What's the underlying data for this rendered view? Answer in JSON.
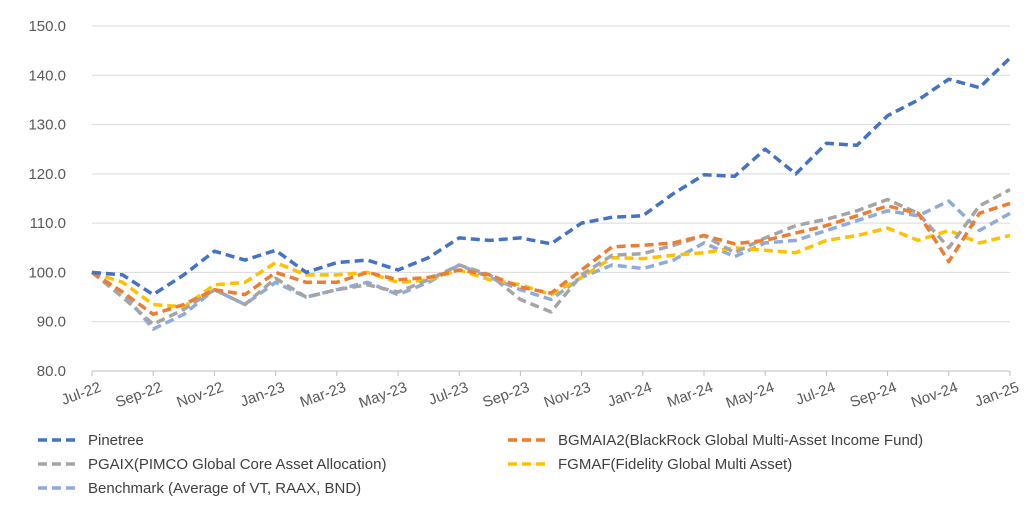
{
  "chart_data": {
    "type": "line",
    "title": "",
    "xlabel": "",
    "ylabel": "",
    "ylim": [
      80,
      150
    ],
    "yticks": [
      "80.0",
      "90.0",
      "100.0",
      "110.0",
      "120.0",
      "130.0",
      "140.0",
      "150.0"
    ],
    "xtick_labels": [
      "Jul-22",
      "Sep-22",
      "Nov-22",
      "Jan-23",
      "Mar-23",
      "May-23",
      "Jul-23",
      "Sep-23",
      "Nov-23",
      "Jan-24",
      "Mar-24",
      "May-24",
      "Jul-24",
      "Sep-24",
      "Nov-24",
      "Jan-25"
    ],
    "x": [
      "Jul-22",
      "Aug-22",
      "Sep-22",
      "Oct-22",
      "Nov-22",
      "Dec-22",
      "Jan-23",
      "Feb-23",
      "Mar-23",
      "Apr-23",
      "May-23",
      "Jun-23",
      "Jul-23",
      "Aug-23",
      "Sep-23",
      "Oct-23",
      "Nov-23",
      "Dec-23",
      "Jan-24",
      "Feb-24",
      "Mar-24",
      "Apr-24",
      "May-24",
      "Jun-24",
      "Jul-24",
      "Aug-24",
      "Sep-24",
      "Oct-24",
      "Nov-24",
      "Dec-24",
      "Jan-25"
    ],
    "grid": "horizontal",
    "legend_position": "bottom",
    "series": [
      {
        "name": "Pinetree",
        "color": "#4472C4",
        "values": [
          100,
          99.5,
          95.5,
          99.5,
          104.3,
          102.5,
          104.5,
          100,
          102,
          102.5,
          100.5,
          103,
          107,
          106.5,
          107,
          105.8,
          110,
          111.2,
          111.5,
          116,
          119.8,
          119.5,
          125,
          120,
          126.2,
          125.8,
          131.8,
          135,
          139.2,
          137.5,
          143.5
        ]
      },
      {
        "name": "BGMAIA2(BlackRock Global Multi-Asset Income Fund)",
        "color": "#ED7D31",
        "values": [
          100,
          96,
          91.5,
          93.5,
          96.5,
          95.5,
          100,
          98,
          98,
          100,
          98.5,
          99,
          100.5,
          99.5,
          97,
          95.8,
          100.5,
          105.2,
          105.5,
          106,
          107.5,
          105.8,
          106.5,
          108,
          109.5,
          111.5,
          113.5,
          112,
          102.2,
          112,
          114
        ]
      },
      {
        "name": "PGAIX(PIMCO Global Core Asset Allocation)",
        "color": "#A5A5A5",
        "values": [
          100,
          95,
          89.5,
          92.5,
          96.5,
          93.5,
          98.8,
          95,
          96.5,
          97.5,
          96,
          98.5,
          101.5,
          99.5,
          94.5,
          92,
          99.5,
          103.5,
          103.8,
          105.5,
          107.5,
          104,
          107,
          109.5,
          110.8,
          112.5,
          114.8,
          112,
          105,
          113.5,
          116.8
        ]
      },
      {
        "name": "FGMAF(Fidelity Global Multi Asset)",
        "color": "#FFC000",
        "values": [
          100,
          98,
          93.5,
          93,
          97.5,
          98,
          102,
          99.5,
          99.5,
          100,
          98,
          98.5,
          100.5,
          98.5,
          97.5,
          95.5,
          99,
          103,
          102.8,
          103.5,
          104,
          105,
          104.5,
          104,
          106.5,
          107.5,
          109,
          106.5,
          108.5,
          106,
          107.5
        ]
      },
      {
        "name": "Benchmark (Average of VT, RAAX, BND)",
        "color": "#8FAADC",
        "values": [
          100,
          96,
          88.5,
          91.5,
          96.5,
          93.5,
          98,
          95,
          96.5,
          98,
          95.5,
          98,
          101.5,
          99,
          96.5,
          94.5,
          99,
          101.5,
          100.8,
          102.5,
          106,
          103.2,
          106,
          106.5,
          108.5,
          110.5,
          112.5,
          111.5,
          114.5,
          108.5,
          112
        ]
      }
    ]
  }
}
